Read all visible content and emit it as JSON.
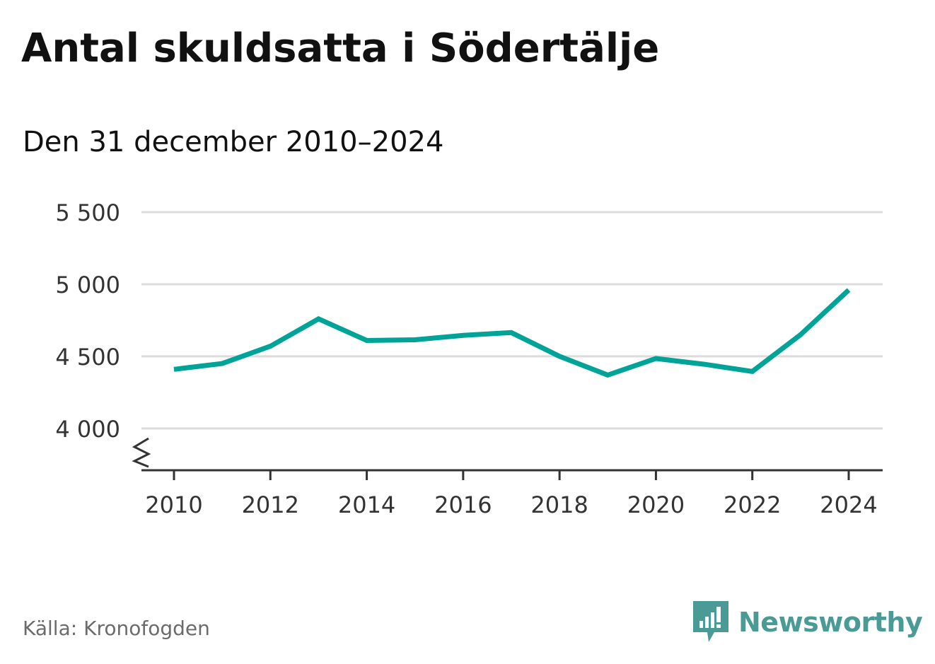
{
  "chart_data": {
    "type": "line",
    "title": "Antal skuldsatta i Södertälje",
    "subtitle": "Den 31 december 2010–2024",
    "x": [
      2010,
      2011,
      2012,
      2013,
      2014,
      2015,
      2016,
      2017,
      2018,
      2019,
      2020,
      2021,
      2022,
      2023,
      2024
    ],
    "series": [
      {
        "name": "Antal skuldsatta",
        "values": [
          4410,
          4450,
          4570,
          4760,
          4610,
          4615,
          4645,
          4665,
          4500,
          4370,
          4485,
          4445,
          4395,
          4650,
          4960
        ]
      }
    ],
    "ylim": [
      3710,
      5500
    ],
    "y_ticks": [
      4000,
      4500,
      5000,
      5500
    ],
    "y_tick_labels": [
      "4 000",
      "4 500",
      "5 000",
      "5 500"
    ],
    "x_ticks": [
      2010,
      2012,
      2014,
      2016,
      2018,
      2020,
      2022,
      2024
    ],
    "x_tick_labels": [
      "2010",
      "2012",
      "2014",
      "2016",
      "2018",
      "2020",
      "2022",
      "2024"
    ],
    "axis_break": true,
    "grid": true,
    "line_color": "#00a398",
    "grid_color": "#dcdcdc",
    "axis_color": "#333333"
  },
  "source": "Källa: Kronofogden",
  "brand": {
    "name": "Newsworthy",
    "icon": "newsworthy-logo-icon",
    "color": "#4a9a96"
  }
}
